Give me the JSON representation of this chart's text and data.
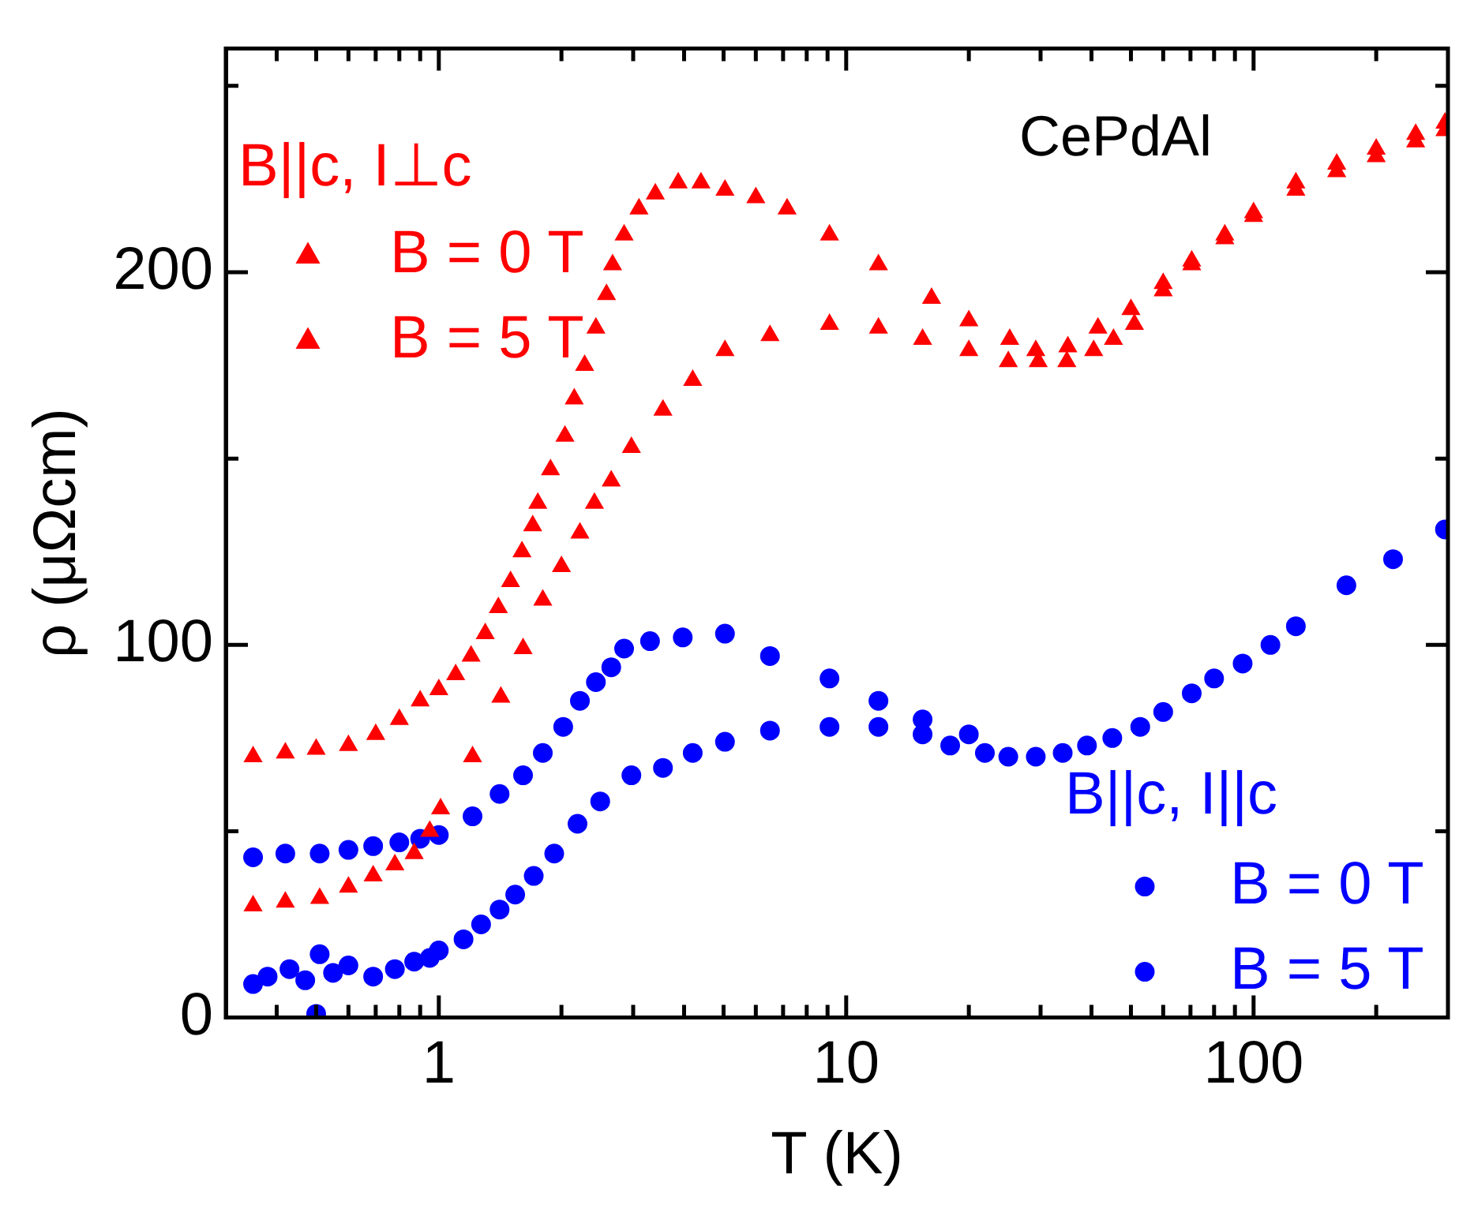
{
  "chart_data": {
    "type": "scatter",
    "title": "CePdAl",
    "xlabel": "T (K)",
    "ylabel": "ρ (μΩcm)",
    "log": "x",
    "legend": "bottom right",
    "annotations": [
      "B||c, I⊥c",
      "B||c, I||c"
    ],
    "xlim": [
      0.3,
      300
    ],
    "ylim": [
      0,
      260
    ],
    "xticks": [
      {
        "value": 0.4,
        "label": null
      },
      {
        "value": 0.5,
        "label": null
      },
      {
        "value": 0.6,
        "label": null
      },
      {
        "value": 0.7,
        "label": null
      },
      {
        "value": 0.8,
        "label": null
      },
      {
        "value": 0.9,
        "label": null
      },
      1,
      {
        "value": 2,
        "label": null
      },
      {
        "value": 3,
        "label": null
      },
      {
        "value": 4,
        "label": null
      },
      {
        "value": 5,
        "label": null
      },
      {
        "value": 6,
        "label": null
      },
      {
        "value": 7,
        "label": null
      },
      {
        "value": 8,
        "label": null
      },
      {
        "value": 9,
        "label": null
      },
      10,
      {
        "value": 20,
        "label": null
      },
      {
        "value": 30,
        "label": null
      },
      {
        "value": 40,
        "label": null
      },
      {
        "value": 50,
        "label": null
      },
      {
        "value": 60,
        "label": null
      },
      {
        "value": 70,
        "label": null
      },
      {
        "value": 80,
        "label": null
      },
      {
        "value": 90,
        "label": null
      },
      100,
      {
        "value": 200,
        "label": null
      }
    ],
    "yticks": [
      0,
      {
        "value": 50,
        "label": null
      },
      100,
      {
        "value": 150,
        "label": null
      },
      200,
      {
        "value": 250,
        "label": null
      }
    ],
    "series": [
      {
        "name": "B = 0 T",
        "color": "#ff0000",
        "marker": "triangle",
        "x": [
          0.35,
          0.42,
          0.5,
          0.6,
          0.7,
          0.8,
          0.9,
          1.0,
          1.1,
          1.2,
          1.3,
          1.4,
          1.5,
          1.6,
          1.7,
          1.75,
          1.88,
          2.04,
          2.15,
          2.28,
          2.43,
          2.58,
          2.67,
          2.85,
          3.1,
          3.4,
          3.87,
          4.4,
          5.04,
          6,
          7.16,
          9.1,
          12,
          16.2,
          20,
          25.2,
          29.2,
          35,
          41.5,
          50,
          60,
          70.5,
          85,
          100,
          127,
          160,
          200,
          250,
          295
        ],
        "values": [
          70,
          71,
          72,
          73,
          76,
          80,
          85,
          88,
          92,
          97,
          103,
          110,
          117,
          125,
          132,
          138,
          147,
          156,
          166,
          175,
          185,
          194,
          202,
          210,
          217,
          221,
          224,
          224,
          222,
          220,
          217,
          210,
          202,
          193,
          187,
          182,
          179,
          180,
          185,
          190,
          197,
          203,
          210,
          216,
          224,
          229,
          233,
          237,
          240
        ]
      },
      {
        "name": "B = 5 T",
        "color": "#ff0000",
        "marker": "triangle",
        "x": [
          0.35,
          0.42,
          0.51,
          0.6,
          0.69,
          0.78,
          0.87,
          0.95,
          1.01,
          1.21,
          1.42,
          1.61,
          1.8,
          2.0,
          2.22,
          2.41,
          2.65,
          2.97,
          3.55,
          4.2,
          5.04,
          6.5,
          9.1,
          12,
          15.4,
          20,
          25,
          29.6,
          34.8,
          40.5,
          45.3,
          51,
          60,
          70.5,
          85,
          100,
          127,
          160,
          200,
          250,
          295
        ],
        "values": [
          30,
          31,
          32,
          35,
          38,
          41,
          44,
          50,
          56,
          70,
          86,
          99,
          112,
          121,
          130,
          138,
          144,
          153,
          163,
          171,
          179,
          183,
          186,
          185,
          182,
          179,
          176,
          176,
          176,
          179,
          182,
          186,
          195,
          202,
          209,
          215,
          222,
          227,
          231,
          235,
          238
        ]
      },
      {
        "name": "B = 0 T",
        "color": "#0000ff",
        "marker": "circle",
        "x": [
          0.35,
          0.42,
          0.51,
          0.6,
          0.69,
          0.8,
          0.9,
          1.0,
          1.21,
          1.41,
          1.61,
          1.8,
          2.02,
          2.22,
          2.43,
          2.65,
          2.85,
          3.3,
          3.97,
          5.04,
          6.5,
          9.1,
          12,
          15.4,
          20
        ],
        "values": [
          43,
          44,
          44,
          45,
          46,
          47,
          48,
          49,
          54,
          60,
          65,
          71,
          78,
          85,
          90,
          94,
          99,
          101,
          102,
          103,
          97,
          91,
          85,
          80,
          76
        ]
      },
      {
        "name": "B = 5 T",
        "color": "#0000ff",
        "marker": "circle",
        "x": [
          0.35,
          0.38,
          0.43,
          0.47,
          0.5,
          0.51,
          0.55,
          0.6,
          0.69,
          0.78,
          0.87,
          0.95,
          1.0,
          1.15,
          1.27,
          1.41,
          1.54,
          1.71,
          1.92,
          2.19,
          2.49,
          2.97,
          3.55,
          4.2,
          5.04,
          6.5,
          9.1,
          12,
          15.4,
          18,
          21.9,
          25,
          29.2,
          34,
          39,
          45,
          52.7,
          60,
          70.5,
          80,
          94,
          110,
          127,
          169,
          220,
          295
        ],
        "values": [
          9,
          11,
          13,
          10,
          1,
          17,
          12,
          14,
          11,
          13,
          15,
          16,
          18,
          21,
          25,
          29,
          33,
          38,
          44,
          52,
          58,
          65,
          67,
          71,
          74,
          77,
          78,
          78,
          76,
          73,
          71,
          70,
          70,
          71,
          73,
          75,
          78,
          82,
          87,
          91,
          95,
          100,
          105,
          116,
          123,
          131
        ]
      }
    ]
  }
}
